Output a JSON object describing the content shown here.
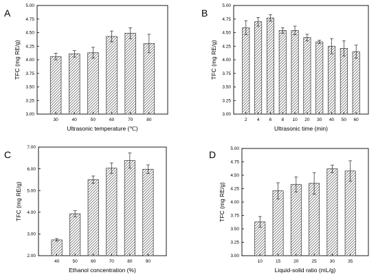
{
  "chart_data": [
    {
      "panel": "A",
      "type": "bar",
      "categories": [
        "30",
        "40",
        "50",
        "60",
        "70",
        "80"
      ],
      "values": [
        4.06,
        4.11,
        4.13,
        4.43,
        4.49,
        4.3
      ],
      "errors": [
        0.06,
        0.06,
        0.1,
        0.1,
        0.1,
        0.17
      ],
      "ylim": [
        3.0,
        5.0
      ],
      "yticks": [
        "3.00",
        "3.25",
        "3.50",
        "3.75",
        "4.00",
        "4.25",
        "4.50",
        "4.75",
        "5.00"
      ],
      "xlabel": "Ultrasonic temperature (℃)",
      "ylabel": "TFC (mg RE/g)"
    },
    {
      "panel": "B",
      "type": "bar",
      "categories": [
        "2",
        "4",
        "6",
        "8",
        "10",
        "20",
        "30",
        "40",
        "50",
        "60"
      ],
      "values": [
        4.59,
        4.7,
        4.77,
        4.54,
        4.54,
        4.41,
        4.33,
        4.25,
        4.21,
        4.15
      ],
      "errors": [
        0.13,
        0.08,
        0.06,
        0.05,
        0.08,
        0.06,
        0.03,
        0.14,
        0.14,
        0.12
      ],
      "ylim": [
        3.0,
        5.0
      ],
      "yticks": [
        "3.00",
        "3.25",
        "3.50",
        "3.75",
        "4.00",
        "4.25",
        "4.50",
        "4.75",
        "5.00"
      ],
      "xlabel": "Ultrasonic time (min)",
      "ylabel": "TFC (mg RE/g)"
    },
    {
      "panel": "C",
      "type": "bar",
      "categories": [
        "40",
        "50",
        "60",
        "70",
        "80",
        "90"
      ],
      "values": [
        2.73,
        3.93,
        5.5,
        6.03,
        6.38,
        5.98
      ],
      "errors": [
        0.06,
        0.14,
        0.17,
        0.24,
        0.35,
        0.2
      ],
      "ylim": [
        2.0,
        7.0
      ],
      "yticks": [
        "2.00",
        "3.00",
        "4.00",
        "5.00",
        "6.00",
        "7.00"
      ],
      "xlabel": "Ethanol concentration (%)",
      "ylabel": "TFC (mg RE/g)"
    },
    {
      "panel": "D",
      "type": "bar",
      "categories": [
        "10",
        "15",
        "20",
        "25",
        "30",
        "35"
      ],
      "values": [
        3.63,
        4.21,
        4.33,
        4.35,
        4.62,
        4.58
      ],
      "errors": [
        0.1,
        0.15,
        0.14,
        0.2,
        0.07,
        0.19
      ],
      "ylim": [
        3.0,
        5.0
      ],
      "yticks": [
        "3.00",
        "3.25",
        "3.50",
        "3.75",
        "4.00",
        "4.25",
        "4.50",
        "4.75",
        "5.00"
      ],
      "xlabel": "Liquid-solid ratio (mL/g)",
      "ylabel": "TFC (mg RE/g)"
    }
  ]
}
